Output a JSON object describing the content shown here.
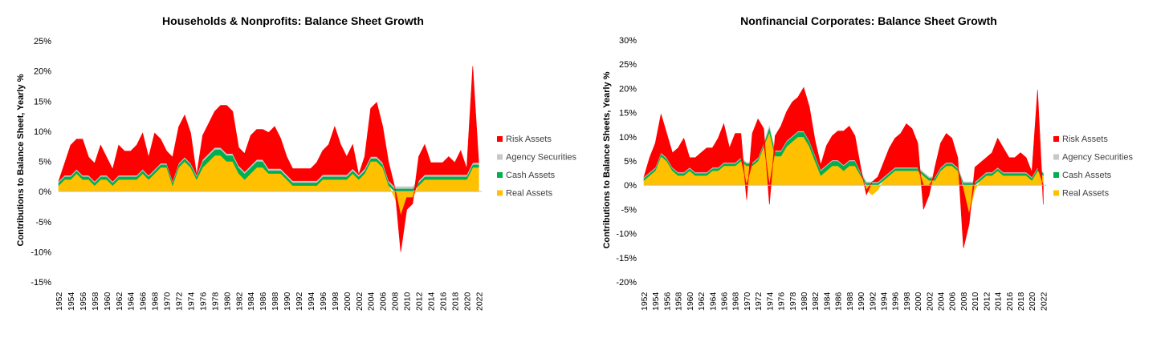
{
  "charts": [
    {
      "title": "Households & Nonprofits: Balance Sheet Growth",
      "ylabel": "Contributions to Balance Sheet, Yearly %",
      "yticks": [
        "25%",
        "20%",
        "15%",
        "10%",
        "5%",
        "0%",
        "-5%",
        "-10%",
        "-15%"
      ],
      "xticks": [
        "1952",
        "1954",
        "1956",
        "1958",
        "1960",
        "1962",
        "1964",
        "1966",
        "1968",
        "1970",
        "1972",
        "1974",
        "1976",
        "1978",
        "1980",
        "1982",
        "1984",
        "1986",
        "1988",
        "1990",
        "1992",
        "1994",
        "1996",
        "1998",
        "2000",
        "2002",
        "2004",
        "2006",
        "2008",
        "2010",
        "2012",
        "2014",
        "2016",
        "2018",
        "2020",
        "2022"
      ],
      "legend": [
        "Risk Assets",
        "Agency Securities",
        "Cash Assets",
        "Real Assets"
      ]
    },
    {
      "title": "Nonfinancial Corporates: Balance Sheet Growth",
      "ylabel": "Contributions to Balance Sheets, Yearly %",
      "yticks": [
        "30%",
        "25%",
        "20%",
        "15%",
        "10%",
        "5%",
        "0%",
        "-5%",
        "-10%",
        "-15%",
        "-20%"
      ],
      "xticks": [
        "1952",
        "1954",
        "1956",
        "1958",
        "1960",
        "1962",
        "1964",
        "1966",
        "1968",
        "1970",
        "1972",
        "1974",
        "1976",
        "1978",
        "1980",
        "1982",
        "1984",
        "1986",
        "1988",
        "1990",
        "1992",
        "1994",
        "1996",
        "1998",
        "2000",
        "2002",
        "2004",
        "2006",
        "2008",
        "2010",
        "2012",
        "2014",
        "2016",
        "2018",
        "2020",
        "2022"
      ],
      "legend": [
        "Risk Assets",
        "Agency Securities",
        "Cash Assets",
        "Real Assets"
      ]
    }
  ],
  "colors": {
    "risk": "#ff0000",
    "agency": "#c8c8c8",
    "cash": "#00b050",
    "real": "#ffc000",
    "axis": "#bfbfbf",
    "text": "#000000"
  },
  "chart_data": [
    {
      "type": "area",
      "stacked": true,
      "title": "Households & Nonprofits: Balance Sheet Growth",
      "ylabel": "Contributions to Balance Sheet, Yearly %",
      "ylim": [
        -15,
        25
      ],
      "xlim": [
        1952,
        2022.5
      ],
      "legend_position": "right",
      "x": [
        1952,
        1953,
        1954,
        1955,
        1956,
        1957,
        1958,
        1959,
        1960,
        1961,
        1962,
        1963,
        1964,
        1965,
        1966,
        1967,
        1968,
        1969,
        1970,
        1971,
        1972,
        1973,
        1974,
        1975,
        1976,
        1977,
        1978,
        1979,
        1980,
        1981,
        1982,
        1983,
        1984,
        1985,
        1986,
        1987,
        1988,
        1989,
        1990,
        1991,
        1992,
        1993,
        1994,
        1995,
        1996,
        1997,
        1998,
        1999,
        2000,
        2001,
        2002,
        2003,
        2004,
        2005,
        2006,
        2007,
        2008,
        2009,
        2010,
        2011,
        2012,
        2013,
        2014,
        2015,
        2016,
        2017,
        2018,
        2019,
        2020,
        2021,
        2022
      ],
      "series": [
        {
          "name": "Real Assets",
          "values": [
            1,
            2,
            2,
            3,
            2,
            2,
            1,
            2,
            2,
            1,
            2,
            2,
            2,
            2,
            3,
            2,
            3,
            4,
            4,
            1,
            4,
            5,
            4,
            2,
            4,
            5,
            6,
            6,
            5,
            5,
            3,
            2,
            3,
            4,
            4,
            3,
            3,
            3,
            2,
            1,
            1,
            1,
            1,
            1,
            2,
            2,
            2,
            2,
            2,
            3,
            2,
            3,
            5,
            5,
            4,
            1,
            -1,
            -4,
            -1,
            -1,
            1,
            2,
            2,
            2,
            2,
            2,
            2,
            2,
            2,
            4,
            4
          ]
        },
        {
          "name": "Cash Assets",
          "values": [
            0.5,
            0.5,
            0.5,
            0.5,
            0.5,
            0.5,
            0.5,
            0.5,
            0.5,
            0.5,
            0.5,
            0.5,
            0.5,
            0.5,
            0.5,
            0.5,
            0.5,
            0.5,
            0.5,
            0.5,
            0.5,
            0.5,
            0.5,
            0.5,
            1,
            1,
            1,
            1,
            1,
            1,
            1,
            1,
            1,
            1,
            1,
            0.5,
            0.5,
            0.5,
            0.5,
            0.5,
            0.5,
            0.5,
            0.5,
            0.5,
            0.5,
            0.5,
            0.5,
            0.5,
            0.5,
            0.5,
            0.5,
            0.5,
            0.5,
            0.5,
            0.5,
            0.5,
            0.5,
            0.5,
            0.5,
            0.5,
            0.5,
            0.5,
            0.5,
            0.5,
            0.5,
            0.5,
            0.5,
            0.5,
            0.5,
            0.5,
            0.5
          ]
        },
        {
          "name": "Agency Securities",
          "values": [
            0.2,
            0.2,
            0.2,
            0.2,
            0.2,
            0.2,
            0.2,
            0.2,
            0.2,
            0.2,
            0.2,
            0.2,
            0.2,
            0.2,
            0.2,
            0.2,
            0.2,
            0.2,
            0.2,
            0.2,
            0.2,
            0.2,
            0.2,
            0.2,
            0.3,
            0.3,
            0.3,
            0.3,
            0.3,
            0.3,
            0.3,
            0.3,
            0.3,
            0.3,
            0.3,
            0.3,
            0.3,
            0.3,
            0.3,
            0.3,
            0.3,
            0.3,
            0.3,
            0.3,
            0.3,
            0.3,
            0.3,
            0.3,
            0.3,
            0.3,
            0.3,
            0.3,
            0.3,
            0.3,
            0.3,
            0.3,
            0.3,
            0.3,
            0.3,
            0.3,
            0.3,
            0.3,
            0.3,
            0.3,
            0.3,
            0.3,
            0.3,
            0.3,
            0.3,
            0.3,
            0.3
          ]
        },
        {
          "name": "Risk Assets",
          "values": [
            0,
            2,
            5,
            5,
            6,
            3,
            3,
            5,
            3,
            2,
            5,
            4,
            4,
            5,
            6,
            3,
            6,
            4,
            2,
            4,
            6,
            7,
            5,
            0,
            4,
            5,
            6,
            7,
            8,
            7,
            3,
            3,
            5,
            5,
            5,
            6,
            7,
            5,
            3,
            2,
            2,
            2,
            2,
            3,
            4,
            5,
            8,
            5,
            3,
            4,
            0,
            2,
            8,
            9,
            6,
            3,
            0,
            -6,
            -2,
            -1,
            4,
            5,
            2,
            2,
            2,
            3,
            2,
            4,
            1,
            16,
            0
          ]
        }
      ]
    },
    {
      "type": "area",
      "stacked": true,
      "title": "Nonfinancial Corporates: Balance Sheet Growth",
      "ylabel": "Contributions to Balance Sheets, Yearly %",
      "ylim": [
        -20,
        30
      ],
      "xlim": [
        1952,
        2022.5
      ],
      "legend_position": "right",
      "x": [
        1952,
        1953,
        1954,
        1955,
        1956,
        1957,
        1958,
        1959,
        1960,
        1961,
        1962,
        1963,
        1964,
        1965,
        1966,
        1967,
        1968,
        1969,
        1970,
        1971,
        1972,
        1973,
        1974,
        1975,
        1976,
        1977,
        1978,
        1979,
        1980,
        1981,
        1982,
        1983,
        1984,
        1985,
        1986,
        1987,
        1988,
        1989,
        1990,
        1991,
        1992,
        1993,
        1994,
        1995,
        1996,
        1997,
        1998,
        1999,
        2000,
        2001,
        2002,
        2003,
        2004,
        2005,
        2006,
        2007,
        2008,
        2009,
        2010,
        2011,
        2012,
        2013,
        2014,
        2015,
        2016,
        2017,
        2018,
        2019,
        2020,
        2021,
        2022
      ],
      "series": [
        {
          "name": "Real Assets",
          "values": [
            1,
            2,
            3,
            6,
            5,
            3,
            2,
            2,
            3,
            2,
            2,
            2,
            3,
            3,
            4,
            4,
            4,
            5,
            4,
            4,
            5,
            8,
            11,
            6,
            6,
            8,
            9,
            10,
            10,
            8,
            5,
            2,
            3,
            4,
            4,
            3,
            4,
            4,
            2,
            -1,
            -2,
            -1,
            1,
            2,
            3,
            3,
            3,
            3,
            3,
            2,
            1,
            1,
            3,
            4,
            4,
            3,
            -1,
            -6,
            -1,
            1,
            2,
            2,
            3,
            2,
            2,
            2,
            2,
            2,
            1,
            3,
            2
          ]
        },
        {
          "name": "Cash Assets",
          "values": [
            0.5,
            0.5,
            0.5,
            0.5,
            0.5,
            0.5,
            0.5,
            0.5,
            0.5,
            0.5,
            0.5,
            0.5,
            0.5,
            0.5,
            0.5,
            0.5,
            0.5,
            0.5,
            0.5,
            0.5,
            0.5,
            0.5,
            1,
            1,
            1,
            1,
            1,
            1,
            1,
            1,
            1,
            1,
            1,
            1,
            1,
            1,
            1,
            1,
            0.5,
            0.5,
            0.5,
            0.5,
            0.5,
            0.5,
            0.5,
            0.5,
            0.5,
            0.5,
            0.5,
            0.5,
            0.5,
            0.5,
            0.5,
            0.5,
            0.5,
            0.5,
            0.5,
            0.5,
            0.5,
            0.5,
            0.5,
            0.5,
            0.5,
            0.5,
            0.5,
            0.5,
            0.5,
            0.5,
            0.5,
            0.5,
            0.5
          ]
        },
        {
          "name": "Agency Securities",
          "values": [
            0.2,
            0.2,
            0.2,
            0.2,
            0.2,
            0.2,
            0.2,
            0.2,
            0.2,
            0.2,
            0.2,
            0.2,
            0.2,
            0.2,
            0.2,
            0.2,
            0.2,
            0.2,
            0.2,
            0.2,
            0.2,
            0.2,
            0.2,
            0.2,
            0.2,
            0.2,
            0.2,
            0.2,
            0.2,
            0.2,
            0.2,
            0.2,
            0.2,
            0.2,
            0.2,
            0.2,
            0.2,
            0.2,
            0.2,
            0.2,
            0.2,
            0.2,
            0.2,
            0.2,
            0.2,
            0.2,
            0.2,
            0.2,
            0.2,
            0.2,
            0.2,
            0.2,
            0.2,
            0.2,
            0.2,
            0.2,
            0.2,
            0.2,
            0.2,
            0.2,
            0.2,
            0.2,
            0.2,
            0.2,
            0.2,
            0.2,
            0.2,
            0.2,
            0.2,
            0.2,
            0.2
          ]
        },
        {
          "name": "Risk Assets",
          "values": [
            0,
            3,
            5,
            8,
            5,
            3,
            5,
            7,
            2,
            3,
            4,
            5,
            4,
            6,
            8,
            3,
            6,
            5,
            -3,
            6,
            8,
            3,
            -4,
            3,
            5,
            6,
            7,
            7,
            9,
            7,
            3,
            1,
            4,
            5,
            6,
            7,
            7,
            5,
            1,
            -1,
            0,
            1,
            3,
            5,
            6,
            7,
            9,
            8,
            5,
            -5,
            -2,
            2,
            5,
            6,
            5,
            2,
            -12,
            -2,
            3,
            3,
            3,
            4,
            6,
            5,
            3,
            3,
            4,
            3,
            1,
            16,
            -4
          ]
        }
      ]
    }
  ]
}
